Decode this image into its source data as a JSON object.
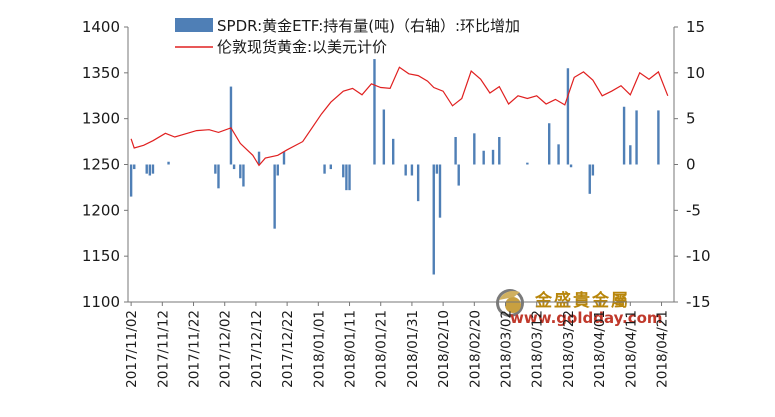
{
  "chart_data": {
    "type": "bar+line",
    "legend_position": "top",
    "grid": false,
    "series": [
      {
        "name": "SPDR:黄金ETF:持有量(吨)（右轴）:环比增加",
        "kind": "bar",
        "axis": "right",
        "color": "#4f7fb6",
        "points": [
          [
            "2017-11-02",
            -3.5
          ],
          [
            "2017-11-03",
            -0.5
          ],
          [
            "2017-11-07",
            -1.0
          ],
          [
            "2017-11-08",
            -1.2
          ],
          [
            "2017-11-09",
            -1.0
          ],
          [
            "2017-11-14",
            0.3
          ],
          [
            "2017-11-29",
            -1.0
          ],
          [
            "2017-11-30",
            -2.6
          ],
          [
            "2017-12-04",
            8.5
          ],
          [
            "2017-12-05",
            -0.5
          ],
          [
            "2017-12-07",
            -1.5
          ],
          [
            "2017-12-08",
            -2.4
          ],
          [
            "2017-12-13",
            1.4
          ],
          [
            "2017-12-18",
            -7.0
          ],
          [
            "2017-12-19",
            -1.2
          ],
          [
            "2017-12-21",
            1.4
          ],
          [
            "2018-01-03",
            -1.0
          ],
          [
            "2018-01-05",
            -0.5
          ],
          [
            "2018-01-09",
            -1.4
          ],
          [
            "2018-01-10",
            -2.8
          ],
          [
            "2018-01-11",
            -2.8
          ],
          [
            "2018-01-19",
            11.5
          ],
          [
            "2018-01-22",
            6.0
          ],
          [
            "2018-01-25",
            2.8
          ],
          [
            "2018-01-29",
            -1.2
          ],
          [
            "2018-01-31",
            -1.2
          ],
          [
            "2018-02-02",
            -4.0
          ],
          [
            "2018-02-07",
            -12.0
          ],
          [
            "2018-02-08",
            -1.0
          ],
          [
            "2018-02-09",
            -5.8
          ],
          [
            "2018-02-14",
            3.0
          ],
          [
            "2018-02-15",
            -2.3
          ],
          [
            "2018-02-20",
            3.4
          ],
          [
            "2018-02-23",
            1.5
          ],
          [
            "2018-02-26",
            1.6
          ],
          [
            "2018-02-28",
            3.0
          ],
          [
            "2018-03-09",
            0.2
          ],
          [
            "2018-03-16",
            4.5
          ],
          [
            "2018-03-19",
            2.2
          ],
          [
            "2018-03-22",
            10.5
          ],
          [
            "2018-03-23",
            -0.3
          ],
          [
            "2018-03-29",
            -3.2
          ],
          [
            "2018-03-30",
            -1.2
          ],
          [
            "2018-04-09",
            6.3
          ],
          [
            "2018-04-11",
            2.1
          ],
          [
            "2018-04-13",
            5.9
          ],
          [
            "2018-04-20",
            5.9
          ]
        ]
      },
      {
        "name": "伦敦现货黄金:以美元计价",
        "kind": "line",
        "axis": "left",
        "color": "#e02020",
        "points": [
          [
            "2017-11-02",
            1278
          ],
          [
            "2017-11-03",
            1268
          ],
          [
            "2017-11-06",
            1271
          ],
          [
            "2017-11-09",
            1276
          ],
          [
            "2017-11-13",
            1284
          ],
          [
            "2017-11-16",
            1280
          ],
          [
            "2017-11-20",
            1284
          ],
          [
            "2017-11-23",
            1287
          ],
          [
            "2017-11-27",
            1288
          ],
          [
            "2017-11-30",
            1285
          ],
          [
            "2017-12-04",
            1290
          ],
          [
            "2017-12-07",
            1273
          ],
          [
            "2017-12-11",
            1260
          ],
          [
            "2017-12-13",
            1249
          ],
          [
            "2017-12-15",
            1257
          ],
          [
            "2017-12-19",
            1260
          ],
          [
            "2017-12-22",
            1266
          ],
          [
            "2017-12-27",
            1275
          ],
          [
            "2018-01-02",
            1305
          ],
          [
            "2018-01-05",
            1318
          ],
          [
            "2018-01-09",
            1330
          ],
          [
            "2018-01-12",
            1333
          ],
          [
            "2018-01-15",
            1326
          ],
          [
            "2018-01-18",
            1338
          ],
          [
            "2018-01-21",
            1334
          ],
          [
            "2018-01-24",
            1333
          ],
          [
            "2018-01-27",
            1356
          ],
          [
            "2018-01-30",
            1349
          ],
          [
            "2018-02-02",
            1347
          ],
          [
            "2018-02-05",
            1341
          ],
          [
            "2018-02-07",
            1334
          ],
          [
            "2018-02-10",
            1330
          ],
          [
            "2018-02-13",
            1314
          ],
          [
            "2018-02-16",
            1322
          ],
          [
            "2018-02-19",
            1352
          ],
          [
            "2018-02-22",
            1343
          ],
          [
            "2018-02-25",
            1328
          ],
          [
            "2018-02-28",
            1335
          ],
          [
            "2018-03-03",
            1316
          ],
          [
            "2018-03-06",
            1325
          ],
          [
            "2018-03-09",
            1322
          ],
          [
            "2018-03-12",
            1325
          ],
          [
            "2018-03-15",
            1316
          ],
          [
            "2018-03-18",
            1321
          ],
          [
            "2018-03-21",
            1315
          ],
          [
            "2018-03-24",
            1345
          ],
          [
            "2018-03-27",
            1351
          ],
          [
            "2018-03-30",
            1342
          ],
          [
            "2018-04-02",
            1325
          ],
          [
            "2018-04-05",
            1330
          ],
          [
            "2018-04-08",
            1336
          ],
          [
            "2018-04-11",
            1326
          ],
          [
            "2018-04-14",
            1350
          ],
          [
            "2018-04-17",
            1343
          ],
          [
            "2018-04-20",
            1351
          ],
          [
            "2018-04-23",
            1325
          ]
        ]
      }
    ],
    "x_range": [
      "2017-11-01",
      "2018-04-25"
    ],
    "x_ticks": [
      "2017/11/02",
      "2017/11/12",
      "2017/11/22",
      "2017/12/02",
      "2017/12/12",
      "2017/12/22",
      "2018/01/01",
      "2018/01/11",
      "2018/01/21",
      "2018/01/31",
      "2018/02/10",
      "2018/02/20",
      "2018/03/02",
      "2018/03/12",
      "2018/03/22",
      "2018/04/01",
      "2018/04/11",
      "2018/04/21"
    ],
    "y_left": {
      "min": 1100,
      "max": 1400,
      "ticks": [
        1100,
        1150,
        1200,
        1250,
        1300,
        1350,
        1400
      ]
    },
    "y_right": {
      "min": -15,
      "max": 15,
      "ticks": [
        -15,
        -10,
        -5,
        0,
        5,
        10,
        15
      ]
    }
  },
  "watermark": {
    "brand_cn": "金盛貴金屬",
    "url": "www.goldday.com"
  }
}
